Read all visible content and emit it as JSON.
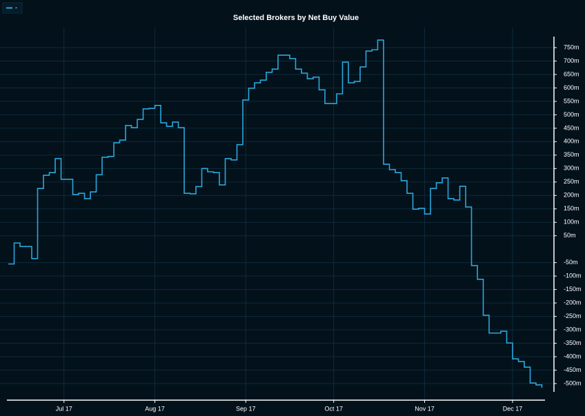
{
  "chart_data": {
    "type": "step-line",
    "title": "Selected Brokers by Net Buy Value",
    "series": [
      {
        "name": "-",
        "color": "#2aa8dc",
        "values": [
          -55,
          23,
          10,
          10,
          -35,
          226,
          275,
          285,
          337,
          260,
          260,
          203,
          208,
          188,
          213,
          277,
          342,
          345,
          396,
          406,
          460,
          452,
          483,
          522,
          524,
          535,
          470,
          457,
          473,
          452,
          208,
          206,
          233,
          300,
          288,
          285,
          239,
          337,
          332,
          389,
          555,
          599,
          619,
          629,
          658,
          670,
          722,
          722,
          709,
          670,
          655,
          634,
          640,
          593,
          542,
          542,
          578,
          696,
          619,
          624,
          678,
          737,
          742,
          778,
          316,
          296,
          285,
          255,
          208,
          149,
          152,
          131,
          226,
          247,
          265,
          188,
          183,
          234,
          157,
          -61,
          -112,
          -246,
          -312,
          -312,
          -305,
          -349,
          -408,
          -418,
          -439,
          -498,
          -505,
          -516
        ]
      }
    ],
    "xlim": [
      0,
      91
    ],
    "xticks": [
      {
        "value": 9.5,
        "label": "Jul 17"
      },
      {
        "value": 25,
        "label": "Aug 17"
      },
      {
        "value": 40.5,
        "label": "Sep 17"
      },
      {
        "value": 55.5,
        "label": "Oct 17"
      },
      {
        "value": 71,
        "label": "Nov 17"
      },
      {
        "value": 86,
        "label": "Dec 17"
      }
    ],
    "ylim": [
      -500,
      750
    ],
    "yticks": [
      {
        "value": 750,
        "label": "750m"
      },
      {
        "value": 700,
        "label": "700m"
      },
      {
        "value": 650,
        "label": "650m"
      },
      {
        "value": 600,
        "label": "600m"
      },
      {
        "value": 550,
        "label": "550m"
      },
      {
        "value": 500,
        "label": "500m"
      },
      {
        "value": 450,
        "label": "450m"
      },
      {
        "value": 400,
        "label": "400m"
      },
      {
        "value": 350,
        "label": "350m"
      },
      {
        "value": 300,
        "label": "300m"
      },
      {
        "value": 250,
        "label": "250m"
      },
      {
        "value": 200,
        "label": "200m"
      },
      {
        "value": 150,
        "label": "150m"
      },
      {
        "value": 100,
        "label": "100m"
      },
      {
        "value": 50,
        "label": "50m"
      },
      {
        "value": -50,
        "label": "-50m"
      },
      {
        "value": -100,
        "label": "-100m"
      },
      {
        "value": -150,
        "label": "-150m"
      },
      {
        "value": -200,
        "label": "-200m"
      },
      {
        "value": -250,
        "label": "-250m"
      },
      {
        "value": -300,
        "label": "-300m"
      },
      {
        "value": -350,
        "label": "-350m"
      },
      {
        "value": -400,
        "label": "-400m"
      },
      {
        "value": -450,
        "label": "-450m"
      },
      {
        "value": -500,
        "label": "-500m"
      }
    ],
    "grid": true,
    "y_axis_side": "right",
    "legend": "top-left"
  }
}
